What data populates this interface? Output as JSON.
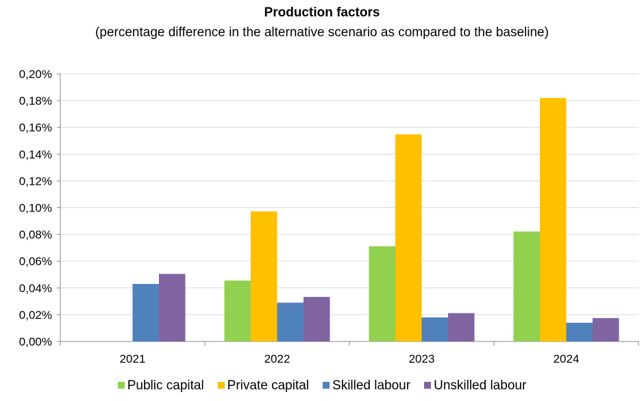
{
  "chart_data": {
    "type": "bar",
    "title": "Production factors",
    "subtitle": "(percentage difference in the alternative scenario as compared to the baseline)",
    "xlabel": "",
    "ylabel": "",
    "categories": [
      "2021",
      "2022",
      "2023",
      "2024"
    ],
    "series": [
      {
        "name": "Public capital",
        "color": "#92D050",
        "values": [
          0,
          0.0455,
          0.0712,
          0.0822
        ]
      },
      {
        "name": "Private capital",
        "color": "#FFC000",
        "values": [
          0,
          0.0972,
          0.1548,
          0.182
        ]
      },
      {
        "name": "Skilled labour",
        "color": "#4F81BD",
        "values": [
          0.043,
          0.029,
          0.018,
          0.014
        ]
      },
      {
        "name": "Unskilled labour",
        "color": "#8064A2",
        "values": [
          0.0505,
          0.0333,
          0.0212,
          0.0175
        ]
      }
    ],
    "ylim": [
      0,
      0.2
    ],
    "yticks": [
      "0,00%",
      "0,02%",
      "0,04%",
      "0,06%",
      "0,08%",
      "0,10%",
      "0,12%",
      "0,14%",
      "0,16%",
      "0,18%",
      "0,20%"
    ],
    "grid": true,
    "legend": "bottom",
    "colors": {
      "gridline": "#D9D9D9",
      "axis": "#868686"
    }
  }
}
